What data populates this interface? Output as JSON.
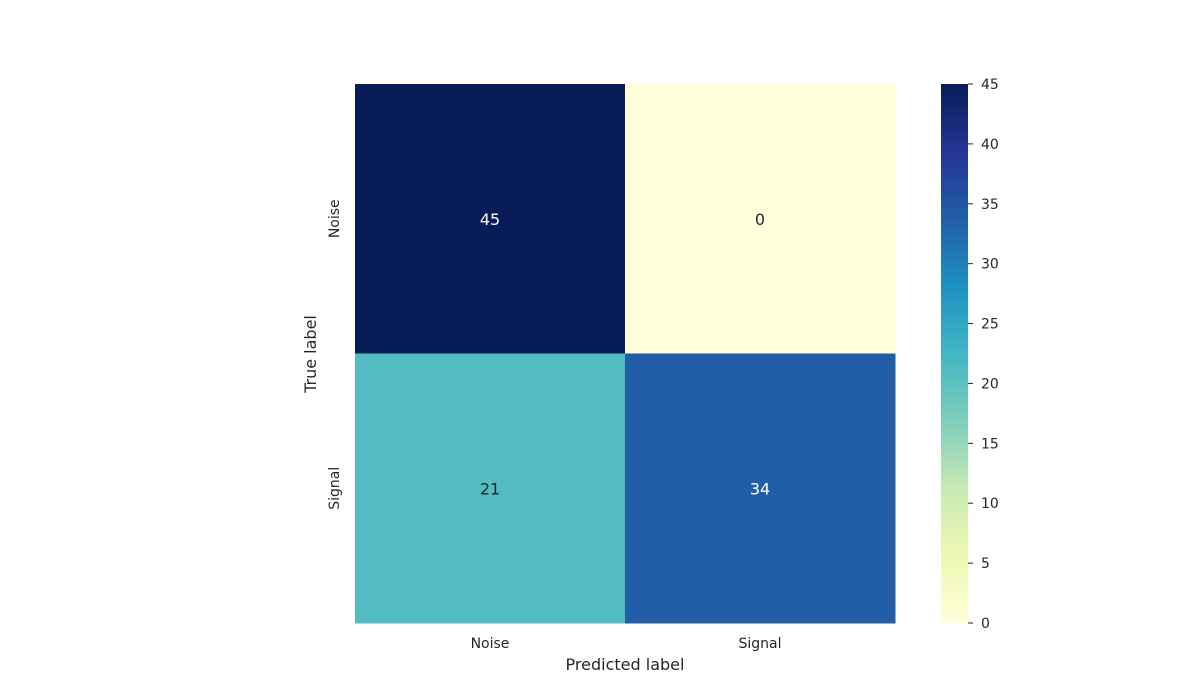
{
  "chart_data": {
    "type": "heatmap",
    "title": "",
    "xlabel": "Predicted label",
    "ylabel": "True label",
    "x_categories": [
      "Noise",
      "Signal"
    ],
    "y_categories": [
      "Noise",
      "Signal"
    ],
    "values": [
      [
        45,
        0
      ],
      [
        21,
        34
      ]
    ],
    "colormap": "YlGnBu",
    "colorbar": {
      "range": [
        0,
        45
      ],
      "ticks": [
        0,
        5,
        10,
        15,
        20,
        25,
        30,
        35,
        40,
        45
      ]
    },
    "cell_colors": [
      [
        "#081d58",
        "#ffffd9"
      ],
      [
        "#53bcc2",
        "#225ea8"
      ]
    ]
  }
}
